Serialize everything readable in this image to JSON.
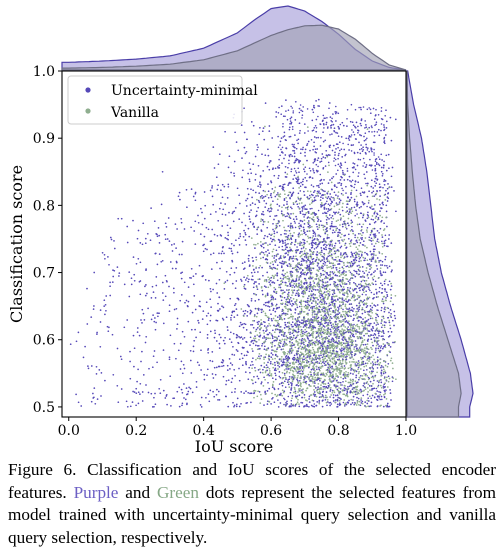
{
  "chart_data": {
    "type": "scatter",
    "title": "",
    "xlabel": "IoU score",
    "ylabel": "Classification score",
    "xlim": [
      -0.02,
      1.0
    ],
    "ylim": [
      0.485,
      1.0
    ],
    "xticks": [
      0.0,
      0.2,
      0.4,
      0.6,
      0.8,
      1.0
    ],
    "xtick_labels": [
      "0.0",
      "0.2",
      "0.4",
      "0.6",
      "0.8",
      "1.0"
    ],
    "yticks": [
      0.5,
      0.6,
      0.7,
      0.8,
      0.9,
      1.0
    ],
    "ytick_labels": [
      "0.5",
      "0.6",
      "0.7",
      "0.8",
      "0.9",
      "1.0"
    ],
    "grid": false,
    "legend_position": "top-left",
    "marginal_density": true,
    "series": [
      {
        "name": "Uncertainty-minimal",
        "color": "#5548b8",
        "fill": "#b3acdf",
        "points": "dense cloud spanning IoU 0.0–0.95, classification 0.5–0.96; concentration around IoU 0.6–0.9",
        "x_density": {
          "x": [
            0.0,
            0.1,
            0.2,
            0.3,
            0.4,
            0.5,
            0.55,
            0.6,
            0.65,
            0.7,
            0.75,
            0.8,
            0.85,
            0.9,
            0.95,
            1.0
          ],
          "density": [
            0.12,
            0.14,
            0.17,
            0.22,
            0.34,
            0.58,
            0.78,
            0.96,
            1.0,
            0.92,
            0.76,
            0.56,
            0.32,
            0.14,
            0.04,
            0.0
          ]
        },
        "y_density": {
          "y": [
            0.5,
            0.52,
            0.55,
            0.6,
            0.65,
            0.7,
            0.75,
            0.8,
            0.85,
            0.9,
            0.95,
            1.0
          ],
          "density": [
            0.95,
            1.0,
            0.96,
            0.82,
            0.66,
            0.52,
            0.42,
            0.36,
            0.3,
            0.22,
            0.1,
            0.01
          ]
        }
      },
      {
        "name": "Vanilla",
        "color": "#8fae8f",
        "fill": "#a3a3b6",
        "points": "cloud concentrated at IoU 0.55–0.95, classification 0.5–0.85",
        "x_density": {
          "x": [
            0.0,
            0.1,
            0.2,
            0.3,
            0.4,
            0.5,
            0.55,
            0.6,
            0.65,
            0.7,
            0.75,
            0.8,
            0.85,
            0.9,
            0.95,
            1.0
          ],
          "density": [
            0.03,
            0.04,
            0.06,
            0.09,
            0.16,
            0.3,
            0.42,
            0.54,
            0.63,
            0.69,
            0.7,
            0.64,
            0.48,
            0.26,
            0.08,
            0.0
          ]
        },
        "y_density": {
          "y": [
            0.5,
            0.52,
            0.55,
            0.6,
            0.65,
            0.7,
            0.75,
            0.8,
            0.85,
            0.9,
            0.95,
            1.0
          ],
          "density": [
            0.78,
            0.82,
            0.78,
            0.62,
            0.46,
            0.32,
            0.2,
            0.13,
            0.08,
            0.04,
            0.01,
            0.0
          ]
        }
      }
    ]
  },
  "caption": {
    "figure_label": "Figure 6.",
    "text_1": " Classification and IoU scores of the selected encoder features. ",
    "purple_word": "Purple",
    "text_2": " and ",
    "green_word": "Green",
    "text_3": " dots represent the selected features from model trained with uncertainty-minimal query selection and vanilla query selection, respectively."
  }
}
